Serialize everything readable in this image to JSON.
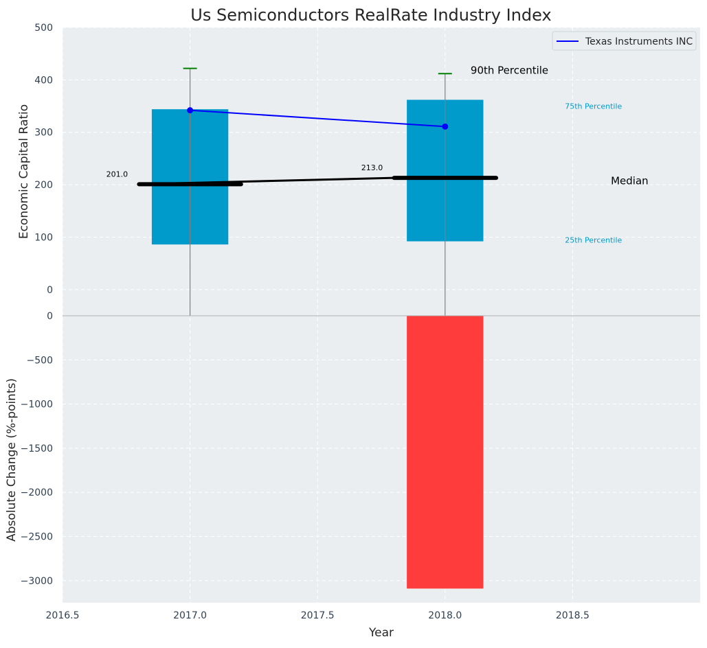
{
  "chart_data": {
    "type": "bar",
    "title": "Us Semiconductors RealRate Industry Index",
    "xlabel": "Year",
    "xlim": [
      2016.5,
      2019.0
    ],
    "x_ticks": [
      2016.5,
      2017.0,
      2017.5,
      2018.0,
      2018.5
    ],
    "x_tick_labels": [
      "2016.5",
      "2017.0",
      "2017.5",
      "2018.0",
      "2018.5"
    ],
    "grid": true,
    "top_panel": {
      "ylabel": "Economic Capital Ratio",
      "ylim": [
        -50,
        500
      ],
      "y_ticks": [
        0,
        100,
        200,
        300,
        400,
        500
      ],
      "y_tick_labels": [
        "0",
        "100",
        "200",
        "300",
        "400",
        "500"
      ],
      "years": [
        2017,
        2018
      ],
      "percentile_25": [
        86,
        92
      ],
      "percentile_75": [
        344,
        362
      ],
      "percentile_90": [
        422,
        412
      ],
      "median": [
        201,
        213
      ],
      "median_labels": [
        "201.0",
        "213.0"
      ],
      "company_series": {
        "name": "Texas Instruments INC",
        "values": [
          342,
          311
        ],
        "color": "#0000ff"
      },
      "bar_color": "#009bcb",
      "whisker_color": "#008000",
      "annotations": {
        "p90": "90th Percentile",
        "p75": "75th Percentile",
        "median": "Median",
        "p25": "25th Percentile"
      },
      "legend": {
        "position": "top-right",
        "entries": [
          "Texas Instruments INC"
        ]
      }
    },
    "bottom_panel": {
      "ylabel": "Absolute Change (%-points)",
      "ylim": [
        -3250,
        0
      ],
      "y_ticks": [
        0,
        -500,
        -1000,
        -1500,
        -2000,
        -2500,
        -3000
      ],
      "y_tick_labels": [
        "0",
        "−500",
        "−1000",
        "−1500",
        "−2000",
        "−2500",
        "−3000"
      ],
      "years": [
        2018
      ],
      "values": [
        -3090
      ],
      "bar_color": "#ff3c3c"
    }
  }
}
